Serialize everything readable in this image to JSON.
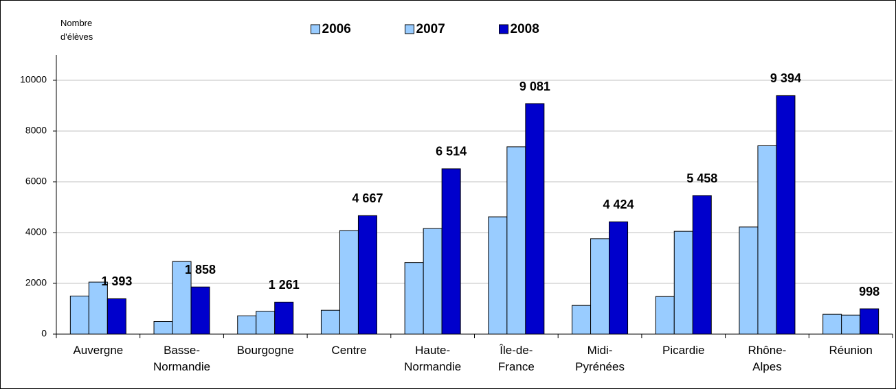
{
  "chart_data": {
    "type": "bar",
    "y_label": "Nombre\nd'élèves",
    "categories": [
      "Auvergne",
      "Basse-\nNormandie",
      "Bourgogne",
      "Centre",
      "Haute-\nNormandie",
      "Île-de-\nFrance",
      "Midi-\nPyrénées",
      "Picardie",
      "Rhône-\nAlpes",
      "Réunion"
    ],
    "series": [
      {
        "name": "2006",
        "color": "#99ccff",
        "values": [
          1500,
          500,
          720,
          940,
          2820,
          4620,
          1130,
          1480,
          4220,
          780
        ]
      },
      {
        "name": "2007",
        "color": "#99ccff",
        "values": [
          2050,
          2860,
          900,
          4080,
          4160,
          7380,
          3760,
          4050,
          7420,
          750
        ]
      },
      {
        "name": "2008",
        "color": "#0000cc",
        "values": [
          1393,
          1858,
          1261,
          4667,
          6514,
          9081,
          4424,
          5458,
          9394,
          998
        ],
        "value_labels": [
          "1 393",
          "1 858",
          "1 261",
          "4 667",
          "6 514",
          "9 081",
          "4 424",
          "5 458",
          "9 394",
          "998"
        ]
      }
    ],
    "ylim": [
      0,
      11000
    ],
    "yticks": [
      0,
      2000,
      4000,
      6000,
      8000,
      10000
    ],
    "grid": true,
    "legend": "top"
  }
}
